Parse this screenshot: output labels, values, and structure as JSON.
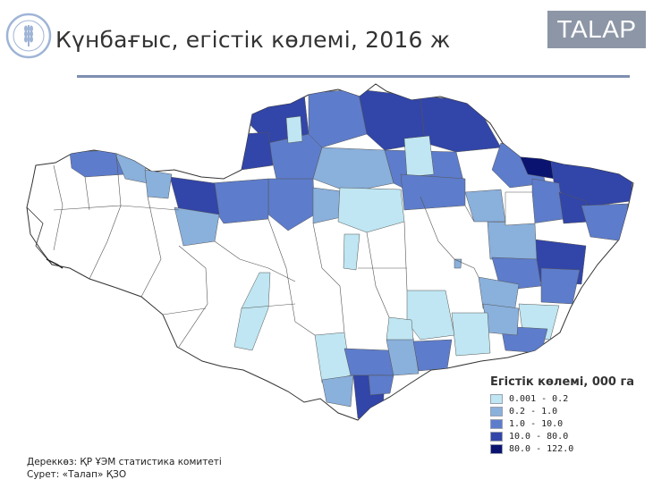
{
  "header": {
    "title": "Күнбағыс, егістік көлемі, 2016 ж",
    "brand": "TALAP",
    "logo_icon": "fao-wheat-emblem-icon"
  },
  "legend": {
    "title": "Егістік көлемі, 000 га",
    "items": [
      {
        "label": "0.001 - 0.2",
        "color": "#bfe6f2"
      },
      {
        "label": "0.2 - 1.0",
        "color": "#8ab0dc"
      },
      {
        "label": "1.0 - 10.0",
        "color": "#5d7ccb"
      },
      {
        "label": "10.0 - 80.0",
        "color": "#3245a8"
      },
      {
        "label": "80.0 - 122.0",
        "color": "#0a1470"
      }
    ]
  },
  "source": {
    "line1": "Дереккөз: ҚР ҰЭМ статистика комитеті",
    "line2": "Сурет: «Талап» ҚЗО"
  }
}
